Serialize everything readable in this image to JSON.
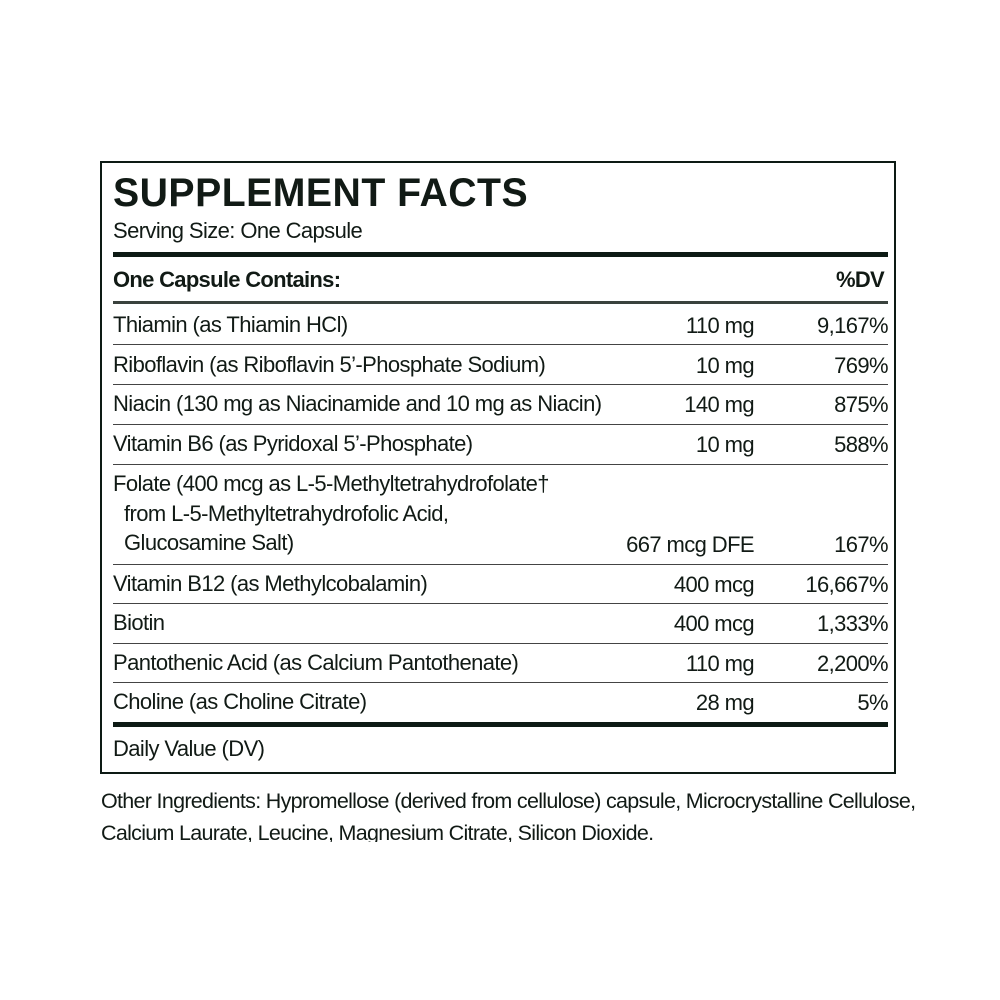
{
  "title": "SUPPLEMENT FACTS",
  "serving_size": "Serving Size: One Capsule",
  "header": {
    "contains": "One Capsule Contains:",
    "dv": "%DV"
  },
  "rows": [
    {
      "name": "Thiamin (as Thiamin HCl)",
      "amount": "110 mg",
      "dv": "9,167%"
    },
    {
      "name": "Riboflavin (as Riboflavin 5’-Phosphate Sodium)",
      "amount": "10 mg",
      "dv": "769%"
    },
    {
      "name": "Niacin (130 mg as Niacinamide and 10 mg as Niacin)",
      "amount": "140 mg",
      "dv": "875%"
    },
    {
      "name": "Vitamin B6 (as Pyridoxal 5’-Phosphate)",
      "amount": "10 mg",
      "dv": "588%"
    },
    {
      "name": "Folate (400 mcg as L-5-Methyltetrahydrofolate†\n  from L-5-Methyltetrahydrofolic Acid,\n  Glucosamine Salt)",
      "amount": "667 mcg DFE",
      "dv": "167%"
    },
    {
      "name": "Vitamin B12 (as Methylcobalamin)",
      "amount": "400 mcg",
      "dv": "16,667%"
    },
    {
      "name": "Biotin",
      "amount": "400 mcg",
      "dv": "1,333%"
    },
    {
      "name": "Pantothenic Acid (as Calcium Pantothenate)",
      "amount": "110 mg",
      "dv": "2,200%"
    },
    {
      "name": "Choline (as Choline Citrate)",
      "amount": "28 mg",
      "dv": "5%"
    }
  ],
  "footer": "Daily Value (DV)",
  "other_ingredients": "Other Ingredients: Hypromellose (derived from cellulose) capsule, Microcrystalline Cellulose, Calcium Laurate, Leucine, Magnesium Citrate, Silicon Dioxide."
}
